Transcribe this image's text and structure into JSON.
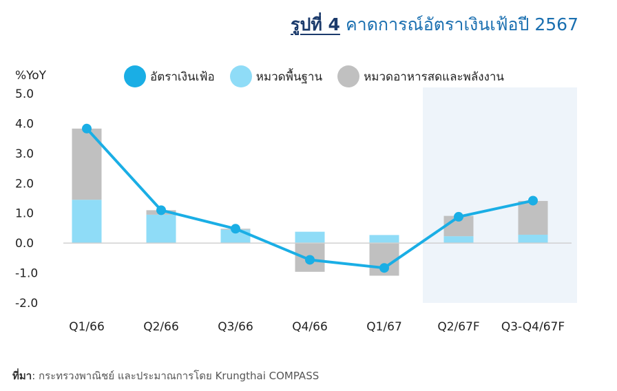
{
  "header": {
    "figure_label": "รูปที่ 4",
    "title": "คาดการณ์อัตราเงินเฟ้อปี 2567"
  },
  "source": {
    "label": "ที่มา",
    "text": ": กระทรวงพาณิชย์ และประมาณการโดย Krungthai COMPASS"
  },
  "colors": {
    "headline": "#1aaee5",
    "core": "#8fdcf7",
    "food_energy": "#c0c0c0",
    "forecast_bg": "#eef4fa"
  },
  "chart_data": {
    "type": "bar",
    "stacked": true,
    "ylabel": "%YoY",
    "ylim": [
      -2.0,
      5.0
    ],
    "yticks": [
      "5.0",
      "4.0",
      "3.0",
      "2.0",
      "1.0",
      "0.0",
      "-1.0",
      "-2.0"
    ],
    "categories": [
      "Q1/66",
      "Q2/66",
      "Q3/66",
      "Q4/66",
      "Q1/67",
      "Q2/67F",
      "Q3-Q4/67F"
    ],
    "forecast_categories": [
      "Q2/67F",
      "Q3-Q4/67F"
    ],
    "legend_position": "top",
    "series": [
      {
        "name": "หมวดพื้นฐาน",
        "kind": "bar",
        "values": [
          1.45,
          0.95,
          0.45,
          0.38,
          0.27,
          0.23,
          0.28
        ]
      },
      {
        "name": "หมวดอาหารสดและพลังงาน",
        "kind": "bar",
        "values": [
          2.38,
          0.15,
          0.03,
          -0.96,
          -1.09,
          0.68,
          1.13
        ]
      },
      {
        "name": "อัตราเงินเฟ้อ",
        "kind": "line",
        "values": [
          3.83,
          1.1,
          0.48,
          -0.56,
          -0.83,
          0.88,
          1.42
        ]
      }
    ]
  }
}
